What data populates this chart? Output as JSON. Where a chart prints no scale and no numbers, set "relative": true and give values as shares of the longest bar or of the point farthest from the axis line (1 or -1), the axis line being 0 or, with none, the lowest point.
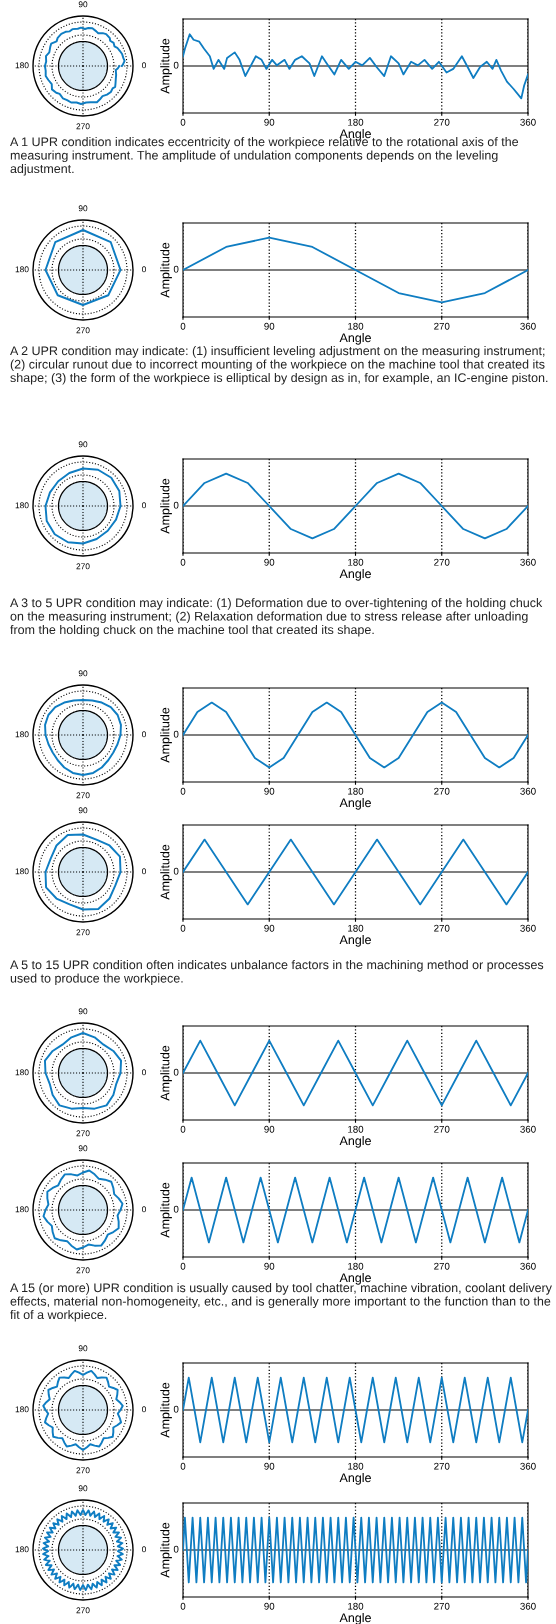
{
  "chart_data": [
    {
      "type": "line",
      "relative": true,
      "grid": "x",
      "xlabel": "Angle",
      "ylabel": "Amplitude",
      "xlim": [
        0,
        360
      ],
      "xticks": [
        0,
        90,
        180,
        270,
        360
      ],
      "ref_lines": [
        {
          "axis": "y",
          "value": 0,
          "label": "0"
        }
      ],
      "annotations": [
        "90",
        "180",
        "0",
        "270"
      ],
      "series": [
        {
          "color": "#0f7dc2",
          "x": [
            0,
            2,
            7,
            11,
            17,
            22,
            28,
            32,
            37,
            43,
            46,
            54,
            59,
            65,
            69,
            76,
            82,
            87,
            93,
            98,
            106,
            111,
            117,
            124,
            132,
            137,
            145,
            150,
            158,
            165,
            173,
            180,
            187,
            195,
            202,
            210,
            217,
            225,
            230,
            238,
            245,
            252,
            260,
            267,
            275,
            282,
            291,
            297,
            303,
            310,
            317,
            323,
            327,
            332,
            338,
            345,
            353,
            356,
            360
          ],
          "values": [
            0.3,
            0.53,
            0.98,
            0.81,
            0.75,
            0.53,
            0.3,
            -0.09,
            0.19,
            -0.09,
            0.25,
            0.42,
            0.19,
            -0.31,
            -0.09,
            0.3,
            0.19,
            -0.09,
            0.19,
            0.02,
            0.19,
            -0.09,
            0.19,
            0.3,
            0.08,
            -0.31,
            0.3,
            0.08,
            -0.26,
            0.19,
            -0.09,
            0.13,
            0.02,
            0.25,
            -0.03,
            -0.31,
            0.3,
            0.08,
            -0.26,
            0.13,
            0.02,
            0.19,
            -0.09,
            0.13,
            -0.2,
            -0.09,
            0.3,
            -0.03,
            -0.37,
            -0.03,
            0.13,
            -0.09,
            0.19,
            -0.15,
            -0.48,
            -0.71,
            -1.0,
            -0.6,
            -0.26
          ]
        }
      ]
    },
    {
      "type": "line",
      "relative": true,
      "grid": "x",
      "xlabel": "Angle",
      "ylabel": "Amplitude",
      "xlim": [
        0,
        360
      ],
      "xticks": [
        0,
        90,
        180,
        270,
        360
      ],
      "ref_lines": [
        {
          "axis": "y",
          "value": 0,
          "label": "0"
        }
      ],
      "annotations": [
        "90",
        "180",
        "0",
        "270"
      ],
      "title": "A 1 UPR condition indicates eccentricity of the workpiece relative to the rotational axis of the measuring instrument. The amplitude of undulation components depends on the leveling adjustment.",
      "series": [
        {
          "color": "#0f7dc2",
          "x": [
            0,
            45,
            90,
            135,
            180,
            225,
            270,
            315,
            360
          ],
          "values": [
            0,
            0.71,
            1,
            0.71,
            0,
            -0.71,
            -1,
            -0.71,
            0
          ]
        }
      ]
    },
    {
      "type": "line",
      "relative": true,
      "grid": "x",
      "xlabel": "Angle",
      "ylabel": "Amplitude",
      "xlim": [
        0,
        360
      ],
      "xticks": [
        0,
        90,
        180,
        270,
        360
      ],
      "ref_lines": [
        {
          "axis": "y",
          "value": 0,
          "label": "0"
        }
      ],
      "annotations": [
        "90",
        "180",
        "0",
        "270"
      ],
      "title": "A 2 UPR condition may indicate: (1) insufficient leveling adjustment on the measuring instrument; (2) circular runout due to incorrect mounting of the workpiece on the machine tool that created its shape; (3) the form of the workpiece is elliptical by design as in, for example, an IC-engine piston.",
      "series": [
        {
          "color": "#0f7dc2",
          "x": [
            0,
            22.5,
            45,
            67.5,
            90,
            112.5,
            135,
            157.5,
            180,
            202.5,
            225,
            247.5,
            270,
            292.5,
            315,
            337.5,
            360
          ],
          "values": [
            0,
            0.71,
            1,
            0.71,
            0,
            -0.71,
            -1,
            -0.71,
            0,
            0.71,
            1,
            0.71,
            0,
            -0.71,
            -1,
            -0.71,
            0
          ]
        }
      ]
    },
    {
      "type": "line",
      "relative": true,
      "grid": "x",
      "xlabel": "Angle",
      "ylabel": "Amplitude",
      "xlim": [
        0,
        360
      ],
      "xticks": [
        0,
        90,
        180,
        270,
        360
      ],
      "ref_lines": [
        {
          "axis": "y",
          "value": 0,
          "label": "0"
        }
      ],
      "annotations": [
        "90",
        "180",
        "0",
        "270"
      ],
      "title": "A 3 to 5 UPR condition may indicate: (1) Deformation due to over-tightening of the holding chuck on the measuring instrument; (2) Relaxation deformation due to stress release after unloading from the holding chuck on the machine tool that created its shape.",
      "series": [
        {
          "color": "#0f7dc2",
          "x": [
            0,
            15,
            30,
            45,
            60,
            75,
            90,
            105,
            120,
            135,
            150,
            165,
            180,
            195,
            210,
            225,
            240,
            255,
            270,
            285,
            300,
            315,
            330,
            345,
            360
          ],
          "values": [
            0,
            0.71,
            1,
            0.71,
            0,
            -0.71,
            -1,
            -0.71,
            0,
            0.71,
            1,
            0.71,
            0,
            -0.71,
            -1,
            -0.71,
            0,
            0.71,
            1,
            0.71,
            0,
            -0.71,
            -1,
            -0.71,
            0
          ]
        }
      ]
    },
    {
      "type": "line",
      "relative": true,
      "grid": "x",
      "xlabel": "Angle",
      "ylabel": "Amplitude",
      "xlim": [
        0,
        360
      ],
      "xticks": [
        0,
        90,
        180,
        270,
        360
      ],
      "ref_lines": [
        {
          "axis": "y",
          "value": 0,
          "label": "0"
        }
      ],
      "annotations": [
        "90",
        "180",
        "0",
        "270"
      ],
      "series": [
        {
          "color": "#0f7dc2",
          "x": [
            0,
            22.5,
            45,
            67.5,
            90,
            112.5,
            135,
            157.5,
            180,
            202.5,
            225,
            247.5,
            270,
            292.5,
            315,
            337.5,
            360
          ],
          "values": [
            0,
            1,
            0,
            -1,
            0,
            1,
            0,
            -1,
            0,
            1,
            0,
            -1,
            0,
            1,
            0,
            -1,
            0
          ]
        }
      ]
    },
    {
      "type": "line",
      "relative": true,
      "grid": "x",
      "xlabel": "Angle",
      "ylabel": "Amplitude",
      "xlim": [
        0,
        360
      ],
      "xticks": [
        0,
        90,
        180,
        270,
        360
      ],
      "ref_lines": [
        {
          "axis": "y",
          "value": 0,
          "label": "0"
        }
      ],
      "annotations": [
        "90",
        "180",
        "0",
        "270"
      ],
      "title": "A 5 to 15 UPR condition often indicates unbalance factors in the machining method or processes used to produce the workpiece.",
      "series": [
        {
          "color": "#0f7dc2",
          "x": [
            0,
            18,
            36,
            54,
            72,
            90,
            108,
            126,
            144,
            162,
            180,
            198,
            216,
            234,
            252,
            270,
            288,
            306,
            324,
            342,
            360
          ],
          "values": [
            0,
            1,
            0,
            -1,
            0,
            1,
            0,
            -1,
            0,
            1,
            0,
            -1,
            0,
            1,
            0,
            -1,
            0,
            1,
            0,
            -1,
            0
          ]
        }
      ]
    },
    {
      "type": "line",
      "relative": true,
      "grid": "x",
      "xlabel": "Angle",
      "ylabel": "Amplitude",
      "xlim": [
        0,
        360
      ],
      "xticks": [
        0,
        90,
        180,
        270,
        360
      ],
      "ref_lines": [
        {
          "axis": "y",
          "value": 0,
          "label": "0"
        }
      ],
      "annotations": [
        "90",
        "180",
        "0",
        "270"
      ],
      "series": [
        {
          "color": "#0f7dc2",
          "x": [
            0,
            9,
            18,
            27,
            36,
            45,
            54,
            63,
            72,
            81,
            90,
            99,
            108,
            117,
            126,
            135,
            144,
            153,
            162,
            171,
            180,
            189,
            198,
            207,
            216,
            225,
            234,
            243,
            252,
            261,
            270,
            279,
            288,
            297,
            306,
            315,
            324,
            333,
            342,
            351,
            360
          ],
          "values": [
            0,
            1,
            0,
            -1,
            0,
            1,
            0,
            -1,
            0,
            1,
            0,
            -1,
            0,
            1,
            0,
            -1,
            0,
            1,
            0,
            -1,
            0,
            1,
            0,
            -1,
            0,
            1,
            0,
            -1,
            0,
            1,
            0,
            -1,
            0,
            1,
            0,
            -1,
            0,
            1,
            0,
            -1,
            0
          ]
        }
      ]
    },
    {
      "type": "line",
      "relative": true,
      "grid": "x",
      "xlabel": "Angle",
      "ylabel": "Amplitude",
      "xlim": [
        0,
        360
      ],
      "xticks": [
        0,
        90,
        180,
        270,
        360
      ],
      "ref_lines": [
        {
          "axis": "y",
          "value": 0,
          "label": "0"
        }
      ],
      "annotations": [
        "90",
        "180",
        "0",
        "270"
      ],
      "title": "A 15 (or more) UPR condition is usually caused by tool chatter, machine vibration, coolant delivery effects, material non-homogeneity, etc., and is generally more important to the function than to the fit of a workpiece.",
      "series": [
        {
          "color": "#0f7dc2",
          "x": [
            0,
            6,
            12,
            18,
            24,
            30,
            36,
            42,
            48,
            54,
            60,
            66,
            72,
            78,
            84,
            90,
            96,
            102,
            108,
            114,
            120,
            126,
            132,
            138,
            144,
            150,
            156,
            162,
            168,
            174,
            180,
            186,
            192,
            198,
            204,
            210,
            216,
            222,
            228,
            234,
            240,
            246,
            252,
            258,
            264,
            270,
            276,
            282,
            288,
            294,
            300,
            306,
            312,
            318,
            324,
            330,
            336,
            342,
            348,
            354,
            360
          ],
          "values": [
            0,
            1,
            0,
            -1,
            0,
            1,
            0,
            -1,
            0,
            1,
            0,
            -1,
            0,
            1,
            0,
            -1,
            0,
            1,
            0,
            -1,
            0,
            1,
            0,
            -1,
            0,
            1,
            0,
            -1,
            0,
            1,
            0,
            -1,
            0,
            1,
            0,
            -1,
            0,
            1,
            0,
            -1,
            0,
            1,
            0,
            -1,
            0,
            1,
            0,
            -1,
            0,
            1,
            0,
            -1,
            0,
            1,
            0,
            -1,
            0,
            1,
            0,
            -1,
            0
          ]
        }
      ]
    },
    {
      "type": "line",
      "relative": true,
      "grid": "x",
      "xlabel": "Angle",
      "ylabel": "Amplitude",
      "xlim": [
        0,
        360
      ],
      "xticks": [
        0,
        90,
        180,
        270,
        360
      ],
      "ref_lines": [
        {
          "axis": "y",
          "value": 0,
          "label": "0"
        }
      ],
      "annotations": [
        "90",
        "180",
        "0",
        "270"
      ],
      "series": [
        {
          "color": "#0f7dc2",
          "x": [
            0,
            2,
            4,
            6,
            8,
            10,
            12,
            14,
            16,
            18,
            20,
            22,
            24,
            26,
            28,
            30,
            32,
            34,
            36,
            38,
            40,
            42,
            44,
            46,
            48,
            50,
            52,
            54,
            56,
            58,
            60,
            62,
            64,
            66,
            68,
            70,
            72,
            74,
            76,
            78,
            80,
            82,
            84,
            86,
            88,
            90,
            92,
            94,
            96,
            98,
            100,
            102,
            104,
            106,
            108,
            110,
            112,
            114,
            116,
            118,
            120,
            122,
            124,
            126,
            128,
            130,
            132,
            134,
            136,
            138,
            140,
            142,
            144,
            146,
            148,
            150,
            152,
            154,
            156,
            158,
            160,
            162,
            164,
            166,
            168,
            170,
            172,
            174,
            176,
            178,
            180,
            182,
            184,
            186,
            188,
            190,
            192,
            194,
            196,
            198,
            200,
            202,
            204,
            206,
            208,
            210,
            212,
            214,
            216,
            218,
            220,
            222,
            224,
            226,
            228,
            230,
            232,
            234,
            236,
            238,
            240,
            242,
            244,
            246,
            248,
            250,
            252,
            254,
            256,
            258,
            260,
            262,
            264,
            266,
            268,
            270,
            272,
            274,
            276,
            278,
            280,
            282,
            284,
            286,
            288,
            290,
            292,
            294,
            296,
            298,
            300,
            302,
            304,
            306,
            308,
            310,
            312,
            314,
            316,
            318,
            320,
            322,
            324,
            326,
            328,
            330,
            332,
            334,
            336,
            338,
            340,
            342,
            344,
            346,
            348,
            350,
            352,
            354,
            356,
            358,
            360
          ],
          "values": [
            0,
            1,
            0,
            -1,
            0,
            1,
            0,
            -1,
            0,
            1,
            0,
            -1,
            0,
            1,
            0,
            -1,
            0,
            1,
            0,
            -1,
            0,
            1,
            0,
            -1,
            0,
            1,
            0,
            -1,
            0,
            1,
            0,
            -1,
            0,
            1,
            0,
            -1,
            0,
            1,
            0,
            -1,
            0,
            1,
            0,
            -1,
            0,
            1,
            0,
            -1,
            0,
            1,
            0,
            -1,
            0,
            1,
            0,
            -1,
            0,
            1,
            0,
            -1,
            0,
            1,
            0,
            -1,
            0,
            1,
            0,
            -1,
            0,
            1,
            0,
            -1,
            0,
            1,
            0,
            -1,
            0,
            1,
            0,
            -1,
            0,
            1,
            0,
            -1,
            0,
            1,
            0,
            -1,
            0,
            1,
            0,
            -1,
            0,
            1,
            0,
            -1,
            0,
            1,
            0,
            -1,
            0,
            1,
            0,
            -1,
            0,
            1,
            0,
            -1,
            0,
            1,
            0,
            -1,
            0,
            1,
            0,
            -1,
            0,
            1,
            0,
            -1,
            0,
            1,
            0,
            -1,
            0,
            1,
            0,
            -1,
            0,
            1,
            0,
            -1,
            0,
            1,
            0,
            -1,
            0,
            1,
            0,
            -1,
            0,
            1,
            0,
            -1,
            0,
            1,
            0,
            -1,
            0,
            1,
            0,
            -1,
            0,
            1,
            0,
            -1,
            0,
            1,
            0,
            -1,
            0,
            1,
            0,
            -1,
            0,
            1,
            0,
            -1,
            0,
            1,
            0,
            -1,
            0,
            1,
            0,
            -1,
            0,
            1,
            0,
            -1,
            0
          ]
        }
      ]
    }
  ]
}
